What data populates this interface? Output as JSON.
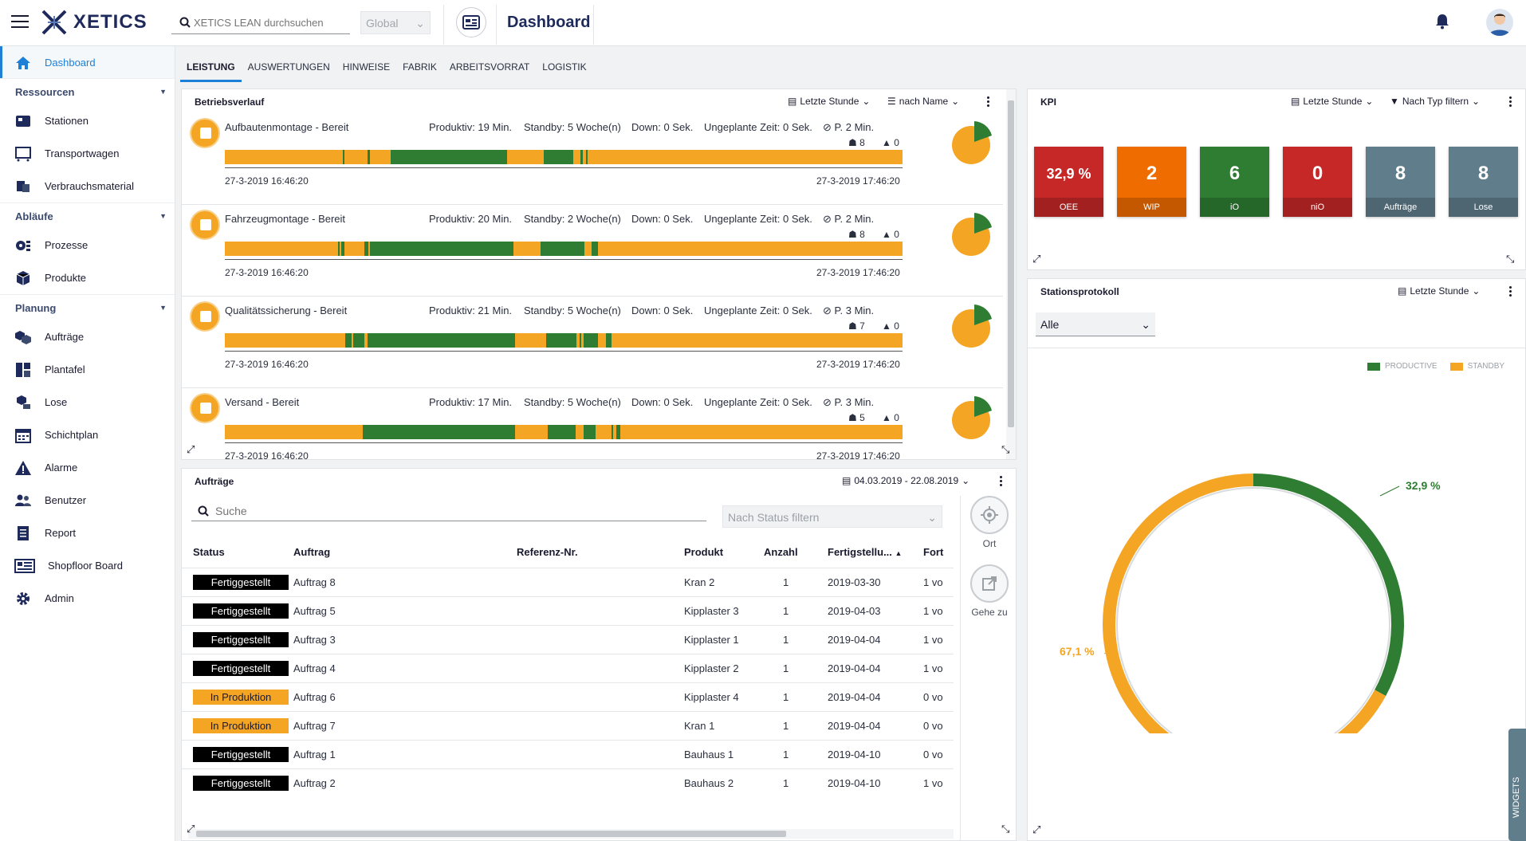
{
  "app": {
    "brand": "XETICS",
    "search_placeholder": "XETICS LEAN durchsuchen",
    "scope": "Global",
    "page_title": "Dashboard"
  },
  "colors": {
    "accent": "#1d7fd6",
    "productive": "#2e7d32",
    "standby": "#f5a524",
    "oee": "#c62828",
    "wip": "#ef6c00",
    "io": "#2e7d32",
    "nio": "#c62828",
    "neutral": "#607d8b"
  },
  "sidebar": {
    "dashboard": "Dashboard",
    "sec_resources": "Ressourcen",
    "stationen": "Stationen",
    "transportwagen": "Transportwagen",
    "verbrauchsmaterial": "Verbrauchsmaterial",
    "sec_ablaeufe": "Abläufe",
    "prozesse": "Prozesse",
    "produkte": "Produkte",
    "sec_planung": "Planung",
    "auftraege": "Aufträge",
    "plantafel": "Plantafel",
    "lose": "Lose",
    "schichtplan": "Schichtplan",
    "alarme": "Alarme",
    "benutzer": "Benutzer",
    "report": "Report",
    "shopfloor": "Shopfloor Board",
    "admin": "Admin"
  },
  "tabs": [
    "LEISTUNG",
    "AUSWERTUNGEN",
    "HINWEISE",
    "FABRIK",
    "ARBEITSVORRAT",
    "LOGISTIK"
  ],
  "betrieb": {
    "title": "Betriebsverlauf",
    "range": "Letzte Stunde",
    "sort": "nach Name",
    "rows": [
      {
        "name": "Aufbautenmontage - Bereit",
        "produktiv": "Produktiv: 19 Min.",
        "standby": "Standby: 5 Woche(n)",
        "down": "Down: 0 Sek.",
        "ungeplant": "Ungeplante Zeit: 0 Sek.",
        "p": "P. 2 Min.",
        "users": "8",
        "alarms": "0",
        "t_start": "27-3-2019 16:46:20",
        "t_end": "27-3-2019 17:46:20"
      },
      {
        "name": "Fahrzeugmontage - Bereit",
        "produktiv": "Produktiv: 20 Min.",
        "standby": "Standby: 2 Woche(n)",
        "down": "Down: 0 Sek.",
        "ungeplant": "Ungeplante Zeit: 0 Sek.",
        "p": "P. 2 Min.",
        "users": "8",
        "alarms": "0",
        "t_start": "27-3-2019 16:46:20",
        "t_end": "27-3-2019 17:46:20"
      },
      {
        "name": "Qualitätssicherung - Bereit",
        "produktiv": "Produktiv: 21 Min.",
        "standby": "Standby: 5 Woche(n)",
        "down": "Down: 0 Sek.",
        "ungeplant": "Ungeplante Zeit: 0 Sek.",
        "p": "P. 3 Min.",
        "users": "7",
        "alarms": "0",
        "t_start": "27-3-2019 16:46:20",
        "t_end": "27-3-2019 17:46:20"
      },
      {
        "name": "Versand - Bereit",
        "produktiv": "Produktiv: 17 Min.",
        "standby": "Standby: 5 Woche(n)",
        "down": "Down: 0 Sek.",
        "ungeplant": "Ungeplante Zeit: 0 Sek.",
        "p": "P. 3 Min.",
        "users": "5",
        "alarms": "0",
        "t_start": "27-3-2019 16:46:20",
        "t_end": "27-3-2019 17:46:20"
      }
    ]
  },
  "kpi": {
    "title": "KPI",
    "range": "Letzte Stunde",
    "filter": "Nach Typ filtern",
    "tiles": [
      {
        "value": "32,9 %",
        "label": "OEE"
      },
      {
        "value": "2",
        "label": "WIP"
      },
      {
        "value": "6",
        "label": "iO"
      },
      {
        "value": "0",
        "label": "niO"
      },
      {
        "value": "8",
        "label": "Aufträge"
      },
      {
        "value": "8",
        "label": "Lose"
      }
    ]
  },
  "orders": {
    "title": "Aufträge",
    "range": "04.03.2019 - 22.08.2019",
    "search_placeholder": "Suche",
    "status_filter": "Nach Status filtern",
    "headers": [
      "Status",
      "Auftrag",
      "Referenz-Nr.",
      "Produkt",
      "Anzahl",
      "Fertigstellu...",
      "Fort"
    ],
    "rows": [
      {
        "status": "Fertiggestellt",
        "auftrag": "Auftrag 8",
        "ref": "",
        "produkt": "Kran 2",
        "anzahl": "1",
        "datum": "2019-03-30",
        "fort": "1 vo"
      },
      {
        "status": "Fertiggestellt",
        "auftrag": "Auftrag 5",
        "ref": "",
        "produkt": "Kipplaster 3",
        "anzahl": "1",
        "datum": "2019-04-03",
        "fort": "1 vo"
      },
      {
        "status": "Fertiggestellt",
        "auftrag": "Auftrag 3",
        "ref": "",
        "produkt": "Kipplaster 1",
        "anzahl": "1",
        "datum": "2019-04-04",
        "fort": "1 vo"
      },
      {
        "status": "Fertiggestellt",
        "auftrag": "Auftrag 4",
        "ref": "",
        "produkt": "Kipplaster 2",
        "anzahl": "1",
        "datum": "2019-04-04",
        "fort": "1 vo"
      },
      {
        "status": "In Produktion",
        "auftrag": "Auftrag 6",
        "ref": "",
        "produkt": "Kipplaster 4",
        "anzahl": "1",
        "datum": "2019-04-04",
        "fort": "0 vo"
      },
      {
        "status": "In Produktion",
        "auftrag": "Auftrag 7",
        "ref": "",
        "produkt": "Kran 1",
        "anzahl": "1",
        "datum": "2019-04-04",
        "fort": "0 vo"
      },
      {
        "status": "Fertiggestellt",
        "auftrag": "Auftrag 1",
        "ref": "",
        "produkt": "Bauhaus 1",
        "anzahl": "1",
        "datum": "2019-04-10",
        "fort": "0 vo"
      },
      {
        "status": "Fertiggestellt",
        "auftrag": "Auftrag 2",
        "ref": "",
        "produkt": "Bauhaus 2",
        "anzahl": "1",
        "datum": "2019-04-10",
        "fort": "1 vo"
      }
    ],
    "btn_ort": "Ort",
    "btn_gehe": "Gehe zu"
  },
  "stationsprotokoll": {
    "title": "Stationsprotokoll",
    "range": "Letzte Stunde",
    "select": "Alle",
    "legend_productive": "PRODUCTIVE",
    "legend_standby": "STANDBY",
    "label_productive": "32,9 %",
    "label_standby": "67,1 %"
  },
  "chart_data": {
    "type": "pie",
    "categories": [
      "PRODUCTIVE",
      "STANDBY"
    ],
    "values": [
      32.9,
      67.1
    ]
  },
  "widgets_label": "WIDGETS"
}
